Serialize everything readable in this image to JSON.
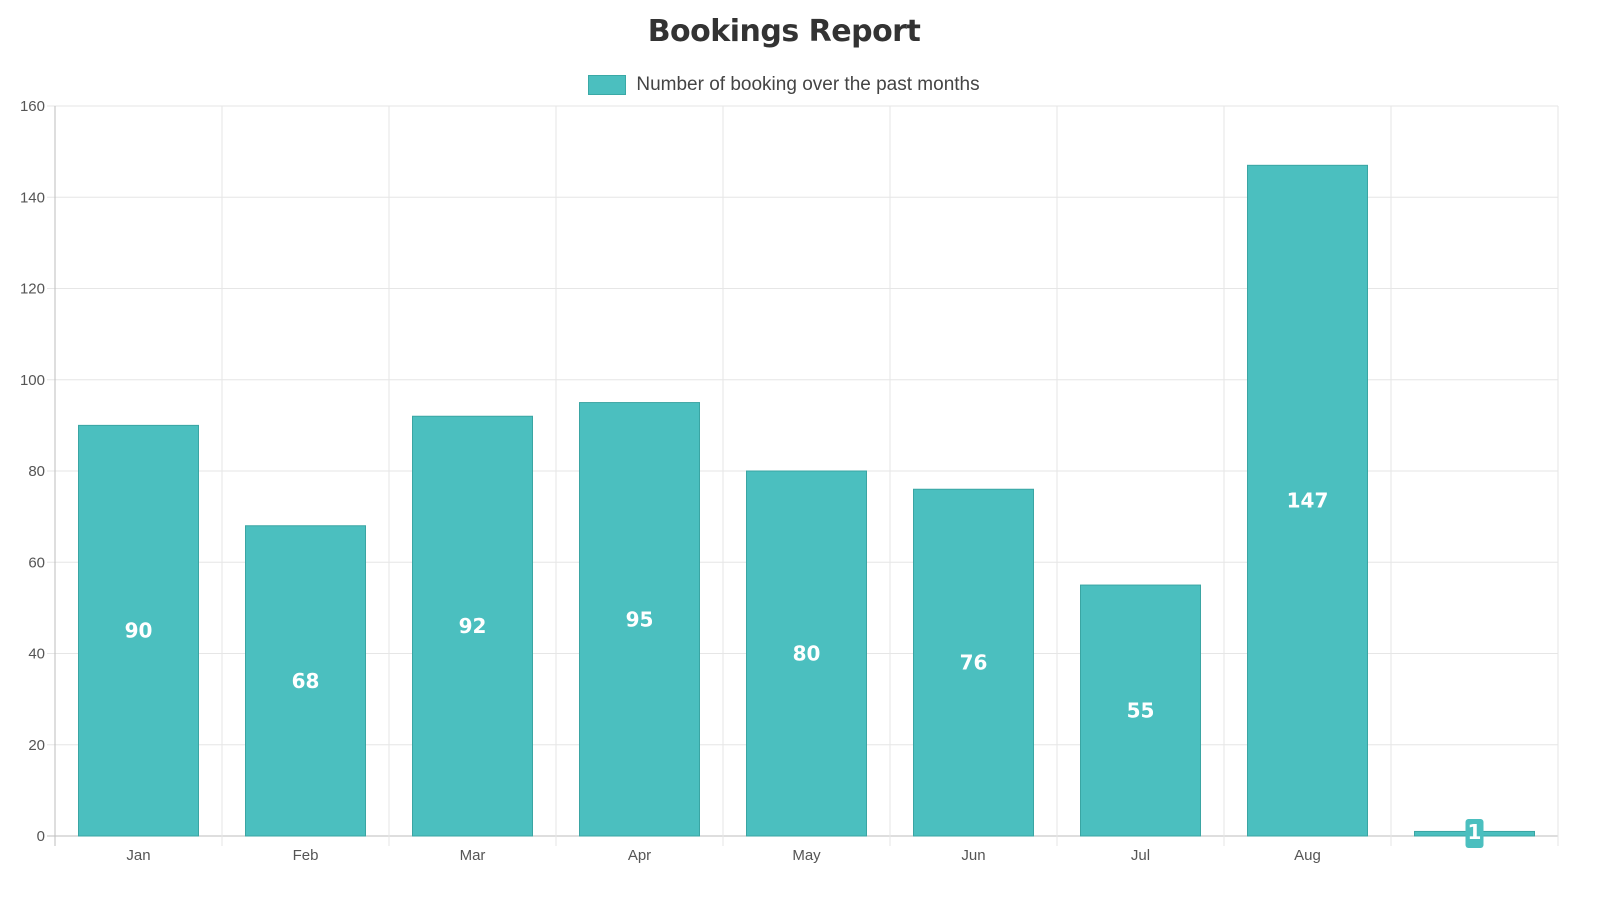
{
  "colors": {
    "bar_fill": "#4bbfbf",
    "bar_stroke": "#3aa5a3",
    "grid": "#e6e6e6",
    "axis": "#bdbdbd",
    "label_box": "#4bbfbf",
    "data_label_text": "#ffffff"
  },
  "chart_data": {
    "type": "bar",
    "title": "Bookings Report",
    "categories": [
      "Jan",
      "Feb",
      "Mar",
      "Apr",
      "May",
      "Jun",
      "Jul",
      "Aug",
      ""
    ],
    "series": [
      {
        "name": "Number of booking over the past months",
        "values": [
          90,
          68,
          92,
          95,
          80,
          76,
          55,
          147,
          1
        ]
      }
    ],
    "xlabel": "",
    "ylabel": "",
    "ylim": [
      0,
      160
    ],
    "yticks": [
      0,
      20,
      40,
      60,
      80,
      100,
      120,
      140,
      160
    ],
    "grid": true,
    "legend_position": "top",
    "data_labels": true
  }
}
